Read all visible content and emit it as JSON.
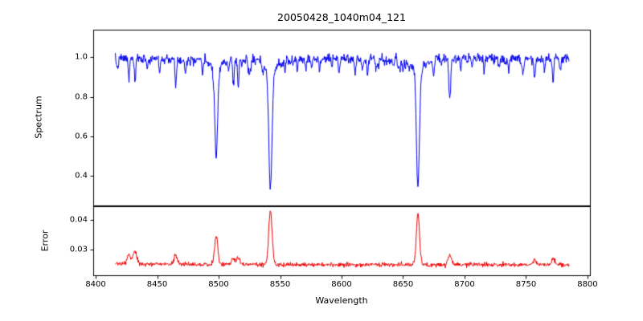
{
  "chart_data": {
    "type": "line",
    "title": "20050428_1040m04_121",
    "xlabel": "Wavelength",
    "seed": 7,
    "grid": false,
    "legend": "none",
    "xlim": [
      8398,
      8802
    ],
    "x_ticks": [
      8400,
      8450,
      8500,
      8550,
      8600,
      8650,
      8700,
      8750,
      8800
    ],
    "x_tick_labels": [
      "8400",
      "8450",
      "8500",
      "8550",
      "8600",
      "8650",
      "8700",
      "8750",
      "8800"
    ],
    "x_data_range": [
      8416,
      8785
    ],
    "panels": [
      {
        "name": "spectrum",
        "ylabel": "Spectrum",
        "line_color": "#0000ee",
        "ylim": [
          0.25,
          1.14
        ],
        "y_ticks": [
          0.4,
          0.6,
          0.8,
          1.0
        ],
        "y_tick_labels": [
          "0.4",
          "0.6",
          "0.8",
          "1.0"
        ],
        "continuum": 0.995,
        "noise_sigma": 0.011,
        "micro_lines": {
          "count": 60,
          "max_depth": 0.05
        },
        "absorption_lines": [
          [
            8498.0,
            0.46,
            1.1
          ],
          [
            8542.1,
            0.6,
            1.3
          ],
          [
            8662.1,
            0.57,
            1.2
          ],
          [
            8427,
            0.1,
            0.6
          ],
          [
            8432,
            0.12,
            0.6
          ],
          [
            8442,
            0.05,
            0.5
          ],
          [
            8452,
            0.07,
            0.5
          ],
          [
            8465,
            0.13,
            0.6
          ],
          [
            8473,
            0.07,
            0.5
          ],
          [
            8487,
            0.08,
            0.5
          ],
          [
            8508,
            0.06,
            0.5
          ],
          [
            8512,
            0.11,
            0.6
          ],
          [
            8516,
            0.13,
            0.6
          ],
          [
            8526,
            0.05,
            0.5
          ],
          [
            8536,
            0.04,
            0.5
          ],
          [
            8554,
            0.05,
            0.5
          ],
          [
            8564,
            0.07,
            0.5
          ],
          [
            8571,
            0.05,
            0.5
          ],
          [
            8582,
            0.07,
            0.5
          ],
          [
            8592,
            0.05,
            0.5
          ],
          [
            8598,
            0.06,
            0.5
          ],
          [
            8611,
            0.08,
            0.6
          ],
          [
            8621,
            0.09,
            0.6
          ],
          [
            8630,
            0.05,
            0.5
          ],
          [
            8642,
            0.05,
            0.5
          ],
          [
            8650,
            0.06,
            0.5
          ],
          [
            8675,
            0.08,
            0.6
          ],
          [
            8688,
            0.2,
            0.8
          ],
          [
            8697,
            0.06,
            0.5
          ],
          [
            8706,
            0.05,
            0.5
          ],
          [
            8716,
            0.07,
            0.5
          ],
          [
            8728,
            0.05,
            0.5
          ],
          [
            8736,
            0.07,
            0.5
          ],
          [
            8747,
            0.06,
            0.5
          ],
          [
            8757,
            0.1,
            0.6
          ],
          [
            8765,
            0.06,
            0.5
          ],
          [
            8772,
            0.13,
            0.6
          ],
          [
            8778,
            0.07,
            0.5
          ]
        ]
      },
      {
        "name": "error",
        "ylabel": "Error",
        "line_color": "#ee0000",
        "ylim": [
          0.0215,
          0.0445
        ],
        "y_ticks": [
          0.03,
          0.04
        ],
        "y_tick_labels": [
          "0.03",
          "0.04"
        ],
        "baseline": 0.025,
        "noise_sigma": 0.00035,
        "peaks": [
          [
            8427,
            0.003,
            1.5
          ],
          [
            8432,
            0.004,
            1.5
          ],
          [
            8465,
            0.0028,
            1.4
          ],
          [
            8498.0,
            0.0093,
            1.3
          ],
          [
            8512,
            0.002,
            1.3
          ],
          [
            8516,
            0.0022,
            1.3
          ],
          [
            8542.1,
            0.018,
            1.4
          ],
          [
            8662.1,
            0.017,
            1.3
          ],
          [
            8688,
            0.0035,
            1.4
          ],
          [
            8757,
            0.0018,
            1.3
          ],
          [
            8772,
            0.002,
            1.3
          ]
        ]
      }
    ]
  }
}
